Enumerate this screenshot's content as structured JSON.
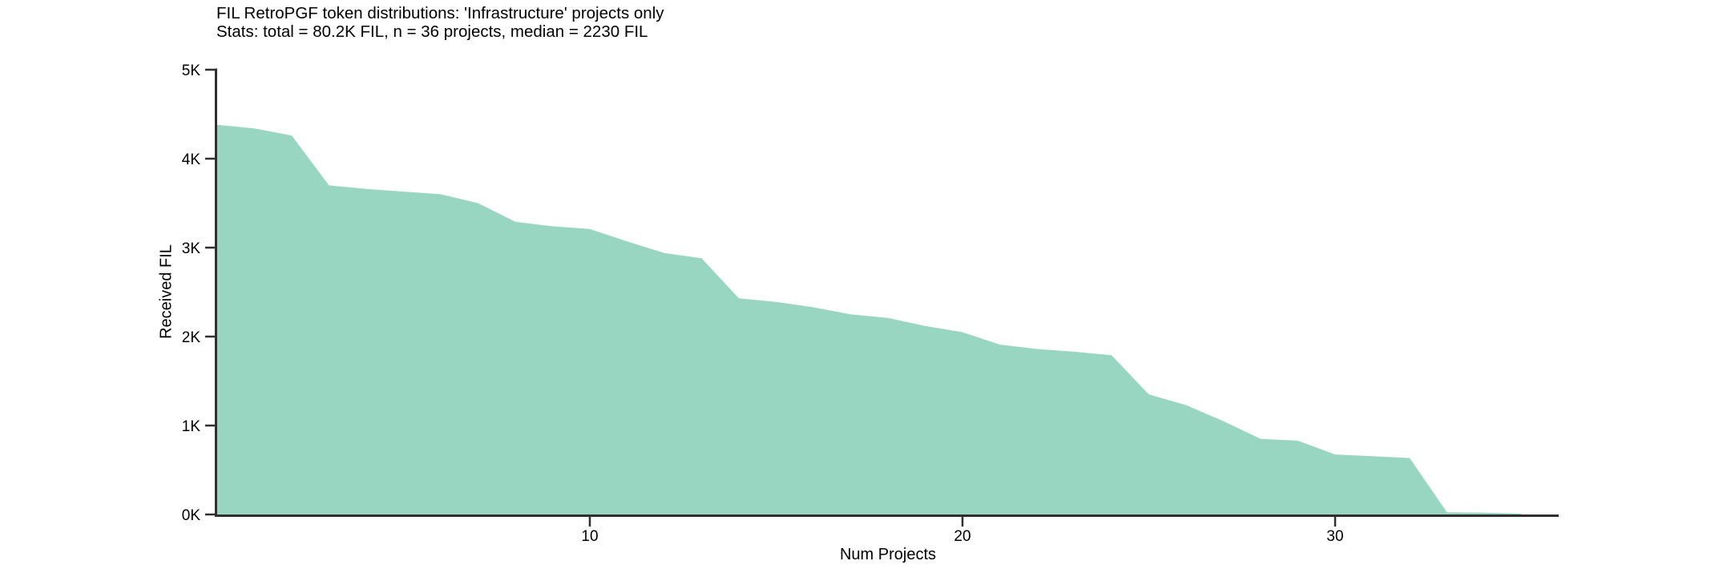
{
  "chart_data": {
    "type": "area",
    "title": "FIL RetroPGF token distributions: 'Infrastructure' projects only",
    "subtitle": "Stats: total = 80.2K FIL, n = 36 projects, median = 2230 FIL",
    "xlabel": "Num Projects",
    "ylabel": "Received FIL",
    "x": [
      0,
      1,
      2,
      3,
      4,
      5,
      6,
      7,
      8,
      9,
      10,
      11,
      12,
      13,
      14,
      15,
      16,
      17,
      18,
      19,
      20,
      21,
      22,
      23,
      24,
      25,
      26,
      27,
      28,
      29,
      30,
      31,
      32,
      33,
      34,
      35
    ],
    "values": [
      4380,
      4340,
      4260,
      3700,
      3660,
      3630,
      3600,
      3500,
      3290,
      3240,
      3210,
      3070,
      2940,
      2880,
      2430,
      2390,
      2330,
      2250,
      2210,
      2120,
      2050,
      1910,
      1860,
      1830,
      1790,
      1350,
      1230,
      1050,
      850,
      830,
      675,
      655,
      635,
      25,
      20,
      10
    ],
    "xlim": [
      0,
      36
    ],
    "ylim": [
      0,
      5000
    ],
    "x_ticks": [
      {
        "value": 10,
        "label": "10"
      },
      {
        "value": 20,
        "label": "20"
      },
      {
        "value": 30,
        "label": "30"
      }
    ],
    "y_ticks": [
      {
        "value": 0,
        "label": "0K"
      },
      {
        "value": 1000,
        "label": "1K"
      },
      {
        "value": 2000,
        "label": "2K"
      },
      {
        "value": 3000,
        "label": "3K"
      },
      {
        "value": 4000,
        "label": "4K"
      },
      {
        "value": 5000,
        "label": "5K"
      }
    ],
    "grid": false,
    "legend": null,
    "stats": {
      "total_fil": "80.2K",
      "n_projects": 36,
      "median_fil": 2230,
      "category": "Infrastructure"
    },
    "colors": {
      "area_fill": "#99d6c2",
      "axis_line": "#2f2f2f",
      "tick_text": "#000000",
      "title_text": "#000000"
    }
  }
}
